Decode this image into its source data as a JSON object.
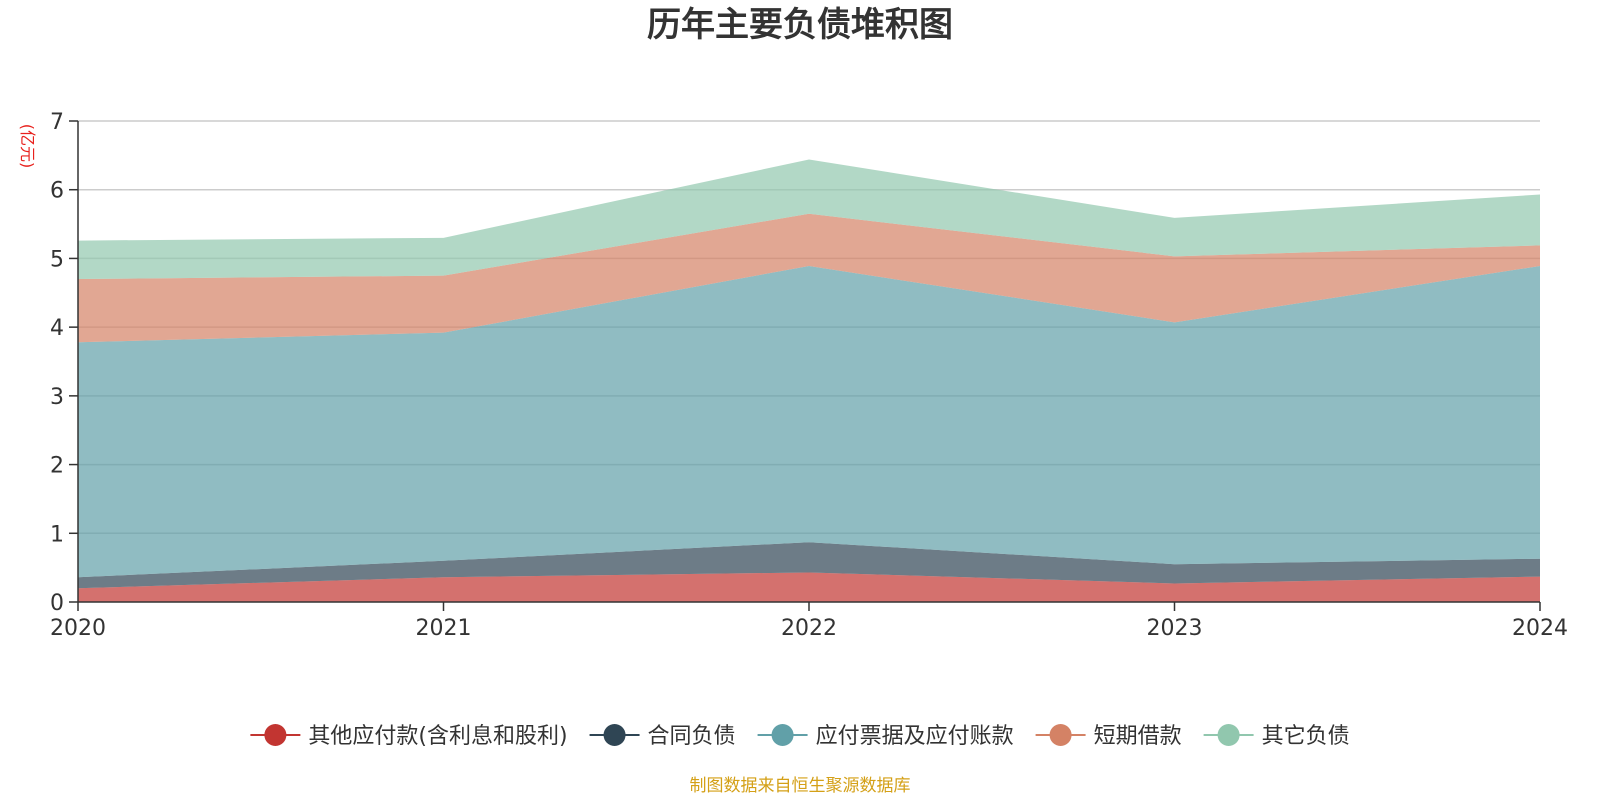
{
  "chart_data": {
    "type": "area",
    "stacked": true,
    "title": "历年主要负债堆积图",
    "ylabel": "(亿元)",
    "x": [
      "2020",
      "2021",
      "2022",
      "2023",
      "2024"
    ],
    "ylim": [
      0,
      7
    ],
    "yticks": [
      "0",
      "1",
      "2",
      "3",
      "4",
      "5",
      "6",
      "7"
    ],
    "grid": true,
    "legend_position": "bottom",
    "series": [
      {
        "name": "其他应付款(含利息和股利)",
        "color": "#c23531",
        "values": [
          0.2,
          0.36,
          0.43,
          0.27,
          0.37
        ]
      },
      {
        "name": "合同负债",
        "color": "#2f4554",
        "values": [
          0.16,
          0.24,
          0.44,
          0.28,
          0.26
        ]
      },
      {
        "name": "应付票据及应付账款",
        "color": "#61a0a8",
        "values": [
          3.42,
          3.32,
          4.02,
          3.52,
          4.26
        ]
      },
      {
        "name": "短期借款",
        "color": "#d48265",
        "values": [
          0.92,
          0.83,
          0.76,
          0.96,
          0.3
        ]
      },
      {
        "name": "其它负债",
        "color": "#91c7ae",
        "values": [
          0.56,
          0.55,
          0.79,
          0.56,
          0.74
        ]
      }
    ]
  },
  "footer": {
    "source": "制图数据来自恒生聚源数据库"
  }
}
